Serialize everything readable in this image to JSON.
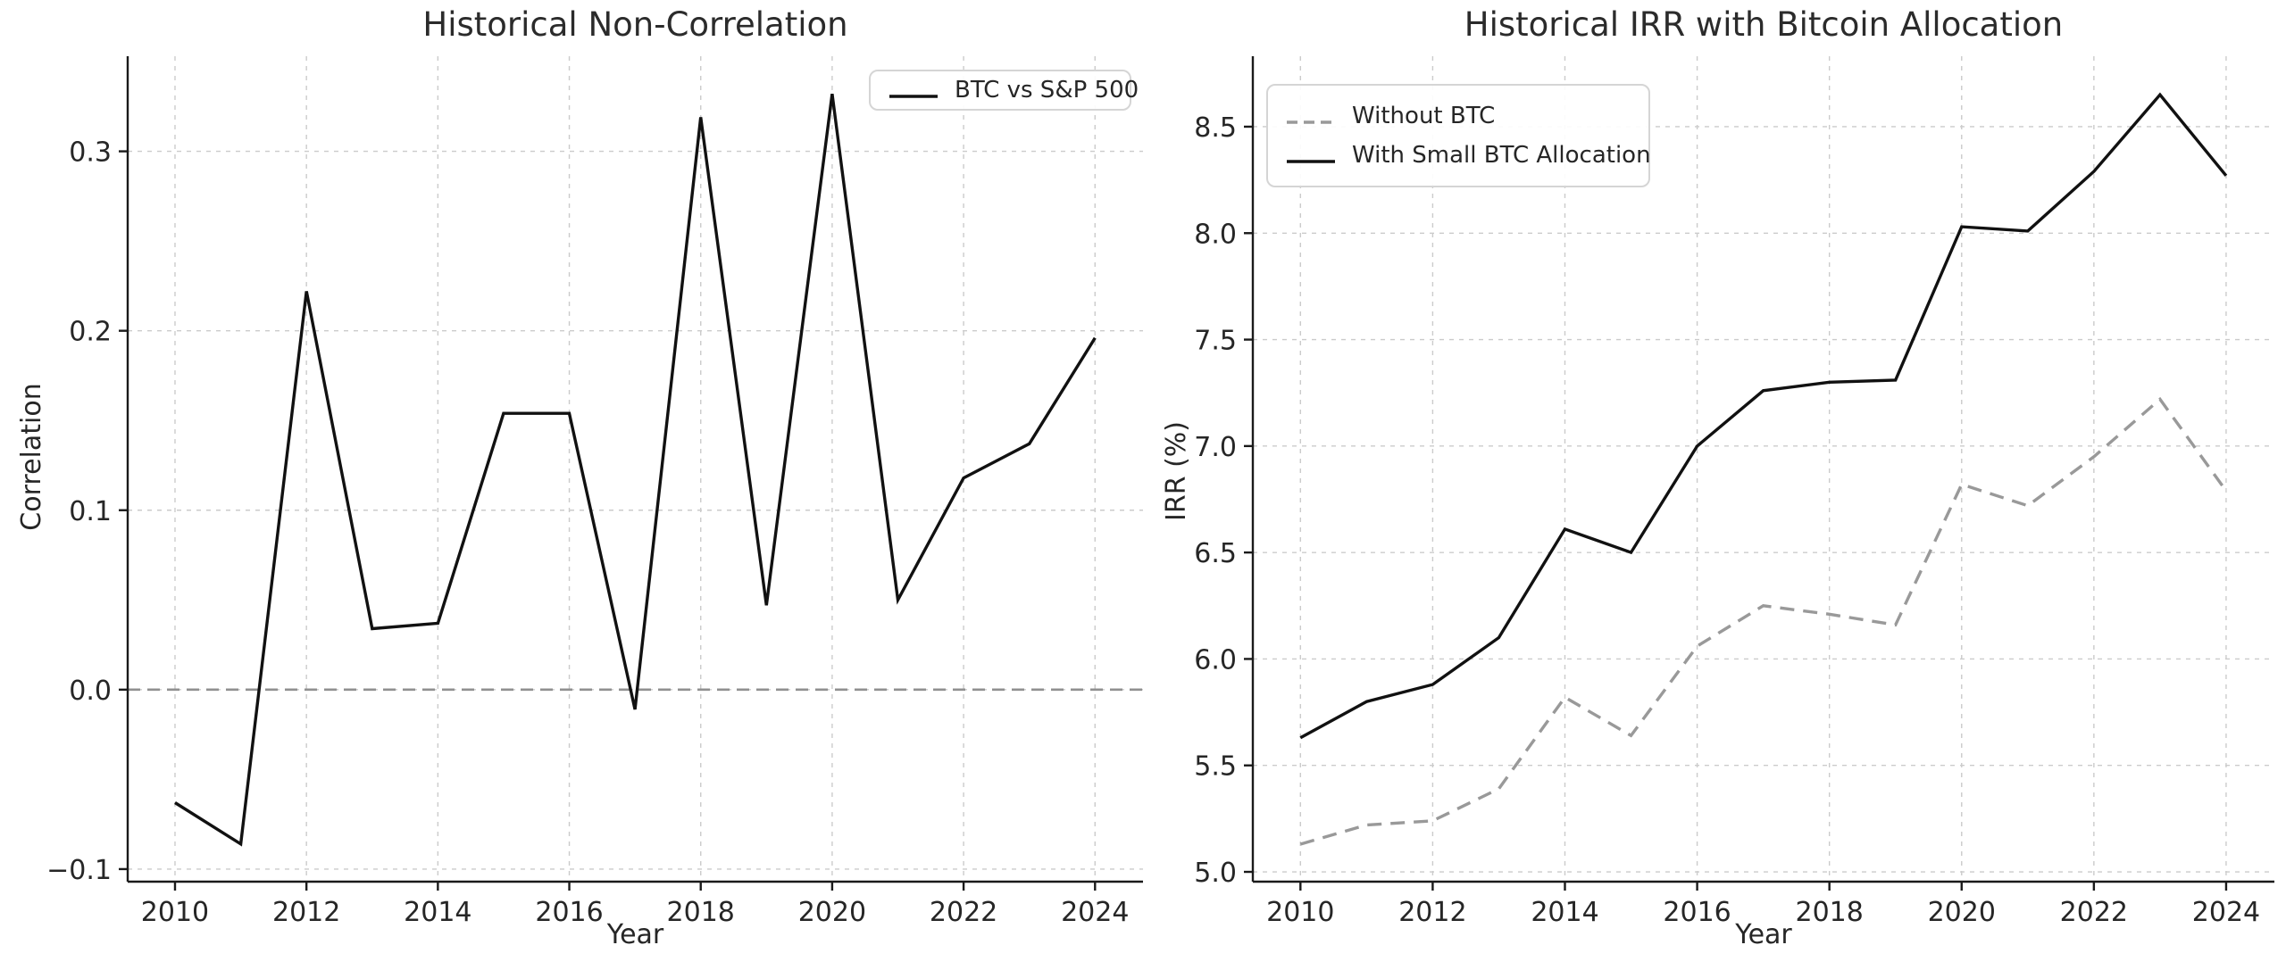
{
  "figure": {
    "background": "#ffffff",
    "text_color": "#262626",
    "grid_color": "#cbcbcb",
    "spine_color": "#1a1a1a",
    "zero_line_color": "#909090"
  },
  "chart_data": [
    {
      "type": "line",
      "title": "Historical Non-Correlation",
      "xlabel": "Year",
      "ylabel": "Correlation",
      "x": [
        2010,
        2011,
        2012,
        2013,
        2014,
        2015,
        2016,
        2017,
        2018,
        2019,
        2020,
        2021,
        2022,
        2023,
        2024
      ],
      "series": [
        {
          "name": "BTC vs S&P 500",
          "style": "solid",
          "color": "#111111",
          "values": [
            -0.063,
            -0.086,
            0.222,
            0.034,
            0.037,
            0.154,
            0.154,
            -0.011,
            0.319,
            0.047,
            0.332,
            0.05,
            0.118,
            0.137,
            0.196
          ]
        }
      ],
      "xlim": [
        2009.28,
        2024.73
      ],
      "ylim": [
        -0.107,
        0.353
      ],
      "xticks": [
        {
          "v": 2010,
          "label": "2010"
        },
        {
          "v": 2012,
          "label": "2012"
        },
        {
          "v": 2014,
          "label": "2014"
        },
        {
          "v": 2016,
          "label": "2016"
        },
        {
          "v": 2018,
          "label": "2018"
        },
        {
          "v": 2020,
          "label": "2020"
        },
        {
          "v": 2022,
          "label": "2022"
        },
        {
          "v": 2024,
          "label": "2024"
        }
      ],
      "yticks": [
        {
          "v": -0.1,
          "label": "−0.1"
        },
        {
          "v": 0.0,
          "label": "0.0"
        },
        {
          "v": 0.1,
          "label": "0.1"
        },
        {
          "v": 0.2,
          "label": "0.2"
        },
        {
          "v": 0.3,
          "label": "0.3"
        }
      ],
      "grid": true,
      "zero_line": true,
      "legend_position": "top-right"
    },
    {
      "type": "line",
      "title": "Historical IRR with Bitcoin Allocation",
      "xlabel": "Year",
      "ylabel": "IRR (%)",
      "x": [
        2010,
        2011,
        2012,
        2013,
        2014,
        2015,
        2016,
        2017,
        2018,
        2019,
        2020,
        2021,
        2022,
        2023,
        2024
      ],
      "series": [
        {
          "name": "Without BTC",
          "style": "dashed",
          "color": "#999999",
          "values": [
            5.13,
            5.22,
            5.24,
            5.39,
            5.82,
            5.64,
            6.06,
            6.25,
            6.21,
            6.16,
            6.82,
            6.72,
            6.95,
            7.22,
            6.79
          ]
        },
        {
          "name": "With Small BTC Allocation",
          "style": "solid",
          "color": "#111111",
          "values": [
            5.63,
            5.8,
            5.88,
            6.1,
            6.61,
            6.5,
            7.0,
            7.26,
            7.3,
            7.31,
            8.03,
            8.01,
            8.29,
            8.65,
            8.27
          ]
        }
      ],
      "xlim": [
        2009.28,
        2024.73
      ],
      "ylim": [
        4.954,
        8.831
      ],
      "xticks": [
        {
          "v": 2010,
          "label": "2010"
        },
        {
          "v": 2012,
          "label": "2012"
        },
        {
          "v": 2014,
          "label": "2014"
        },
        {
          "v": 2016,
          "label": "2016"
        },
        {
          "v": 2018,
          "label": "2018"
        },
        {
          "v": 2020,
          "label": "2020"
        },
        {
          "v": 2022,
          "label": "2022"
        },
        {
          "v": 2024,
          "label": "2024"
        }
      ],
      "yticks": [
        {
          "v": 5.0,
          "label": "5.0"
        },
        {
          "v": 5.5,
          "label": "5.5"
        },
        {
          "v": 6.0,
          "label": "6.0"
        },
        {
          "v": 6.5,
          "label": "6.5"
        },
        {
          "v": 7.0,
          "label": "7.0"
        },
        {
          "v": 7.5,
          "label": "7.5"
        },
        {
          "v": 8.0,
          "label": "8.0"
        },
        {
          "v": 8.5,
          "label": "8.5"
        }
      ],
      "grid": true,
      "zero_line": false,
      "legend_position": "top-left"
    }
  ]
}
